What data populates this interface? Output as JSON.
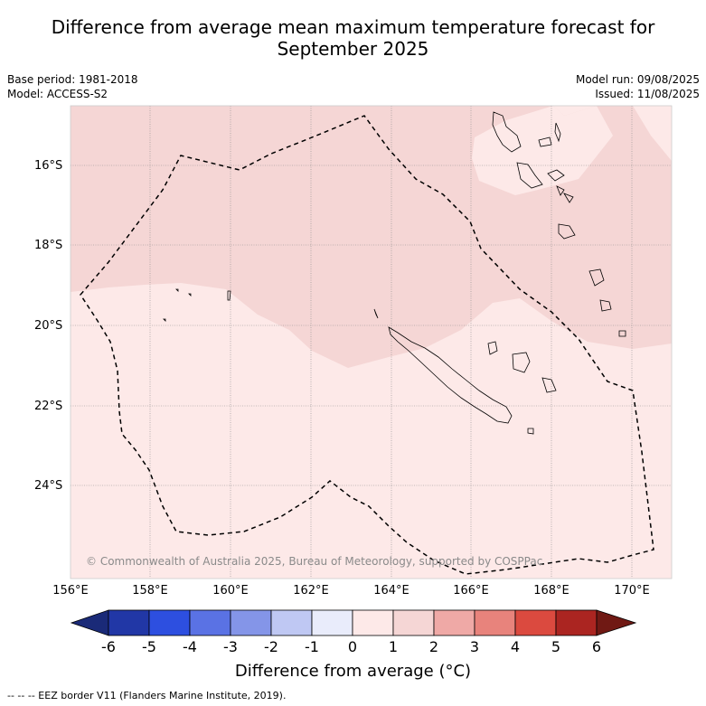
{
  "title_line1": "Difference from average mean maximum temperature forecast for",
  "title_line2": "September 2025",
  "meta": {
    "base_period": "Base period: 1981-2018",
    "model": "Model: ACCESS-S2",
    "model_run": "Model run: 09/08/2025",
    "issued": "Issued: 11/08/2025"
  },
  "map": {
    "lat_labels": [
      "16°S",
      "18°S",
      "20°S",
      "22°S",
      "24°S"
    ],
    "lon_labels": [
      "156°E",
      "158°E",
      "160°E",
      "162°E",
      "164°E",
      "166°E",
      "168°E",
      "170°E"
    ],
    "copyright": "© Commonwealth of Australia 2025, Bureau of Meteorology, supported by COSPPac",
    "fill_colors": {
      "band_0_1": "#fde9e8",
      "band_1_2": "#f5d6d5"
    }
  },
  "colorbar": {
    "ticks": [
      "-6",
      "-5",
      "-4",
      "-3",
      "-2",
      "-1",
      "0",
      "1",
      "2",
      "3",
      "4",
      "5",
      "6"
    ],
    "colors": [
      "#1a2a78",
      "#2137a6",
      "#2d4fe0",
      "#5a72e4",
      "#8495e8",
      "#bfc8f3",
      "#e9ecfb",
      "#fde9e8",
      "#f5d6d5",
      "#efa9a6",
      "#e8837c",
      "#db4a3f",
      "#ab2521",
      "#701914"
    ],
    "title": "Difference from average (°C)"
  },
  "footer": "--  --  -- EEZ border V11 (Flanders Marine Institute, 2019)."
}
